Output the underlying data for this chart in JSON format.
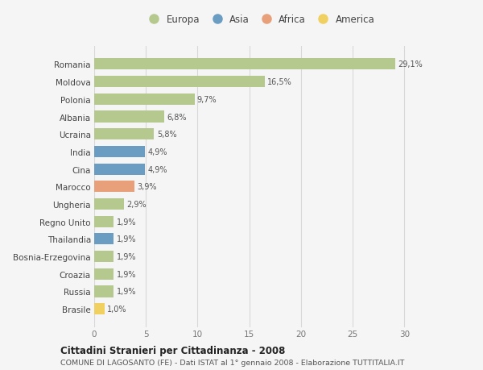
{
  "countries": [
    "Romania",
    "Moldova",
    "Polonia",
    "Albania",
    "Ucraina",
    "India",
    "Cina",
    "Marocco",
    "Ungheria",
    "Regno Unito",
    "Thailandia",
    "Bosnia-Erzegovina",
    "Croazia",
    "Russia",
    "Brasile"
  ],
  "values": [
    29.1,
    16.5,
    9.7,
    6.8,
    5.8,
    4.9,
    4.9,
    3.9,
    2.9,
    1.9,
    1.9,
    1.9,
    1.9,
    1.9,
    1.0
  ],
  "labels": [
    "29,1%",
    "16,5%",
    "9,7%",
    "6,8%",
    "5,8%",
    "4,9%",
    "4,9%",
    "3,9%",
    "2,9%",
    "1,9%",
    "1,9%",
    "1,9%",
    "1,9%",
    "1,9%",
    "1,0%"
  ],
  "continents": [
    "Europa",
    "Europa",
    "Europa",
    "Europa",
    "Europa",
    "Asia",
    "Asia",
    "Africa",
    "Europa",
    "Europa",
    "Asia",
    "Europa",
    "Europa",
    "Europa",
    "America"
  ],
  "continent_colors": {
    "Europa": "#b5c98e",
    "Asia": "#6b9dc2",
    "Africa": "#e8a07a",
    "America": "#f0d060"
  },
  "legend_order": [
    "Europa",
    "Asia",
    "Africa",
    "America"
  ],
  "legend_colors": [
    "#b5c98e",
    "#6b9dc2",
    "#e8a07a",
    "#f0d060"
  ],
  "xlim": [
    0,
    32
  ],
  "xticks": [
    0,
    5,
    10,
    15,
    20,
    25,
    30
  ],
  "title": "Cittadini Stranieri per Cittadinanza - 2008",
  "subtitle": "COMUNE DI LAGOSANTO (FE) - Dati ISTAT al 1° gennaio 2008 - Elaborazione TUTTITALIA.IT",
  "background_color": "#f5f5f5",
  "bar_height": 0.65,
  "grid_color": "#d8d8d8"
}
